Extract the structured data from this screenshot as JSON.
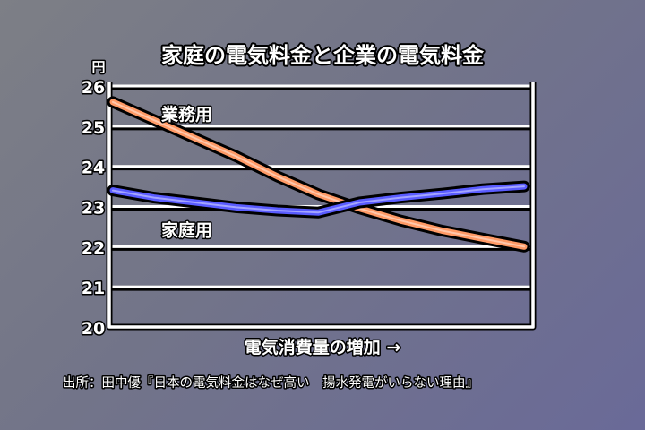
{
  "chart_data": {
    "type": "line",
    "title": "家庭の電気料金と企業の電気料金",
    "xlabel": "電気消費量の増加 →",
    "ylabel": "円",
    "ylim": [
      20,
      26
    ],
    "yticks": [
      "20",
      "21",
      "22",
      "23",
      "24",
      "25",
      "26"
    ],
    "grid": true,
    "x": [
      0,
      1,
      2,
      3,
      4,
      5,
      6,
      7,
      8,
      9,
      10
    ],
    "series": [
      {
        "name": "業務用",
        "color": "#ff9a66",
        "values": [
          25.6,
          25.15,
          24.7,
          24.25,
          23.75,
          23.3,
          22.95,
          22.65,
          22.4,
          22.2,
          22.0
        ]
      },
      {
        "name": "家庭用",
        "color": "#5a5cff",
        "values": [
          23.4,
          23.22,
          23.1,
          22.98,
          22.9,
          22.85,
          23.1,
          23.22,
          23.32,
          23.43,
          23.5
        ]
      }
    ],
    "source": "出所：田中優『日本の電気料金はなぜ高い　揚水発電がいらない理由』"
  }
}
